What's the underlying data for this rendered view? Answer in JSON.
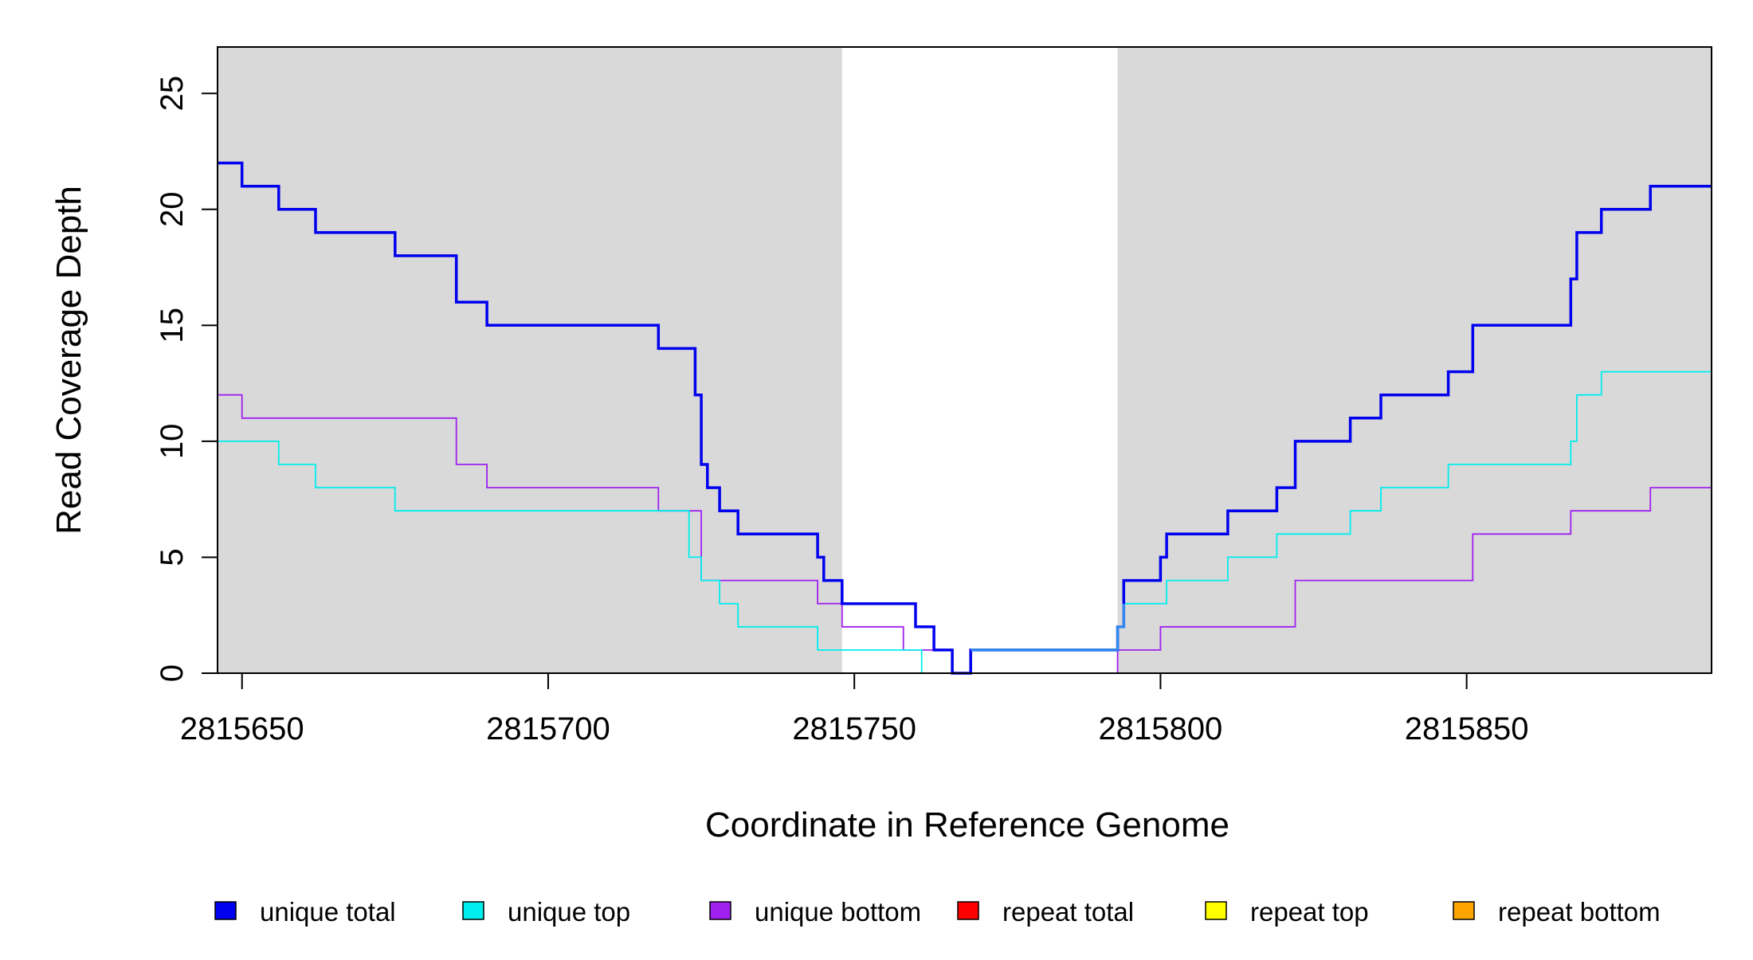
{
  "chart_data": {
    "type": "line",
    "step": true,
    "title": "",
    "xlabel": "Coordinate in Reference Genome",
    "ylabel": "Read Coverage Depth",
    "xlim": [
      2815646,
      2815890
    ],
    "ylim": [
      0,
      27
    ],
    "x_ticks": [
      2815650,
      2815700,
      2815750,
      2815800,
      2815850
    ],
    "y_ticks": [
      0,
      5,
      10,
      15,
      20,
      25
    ],
    "shaded_regions": [
      {
        "x0": 2815646,
        "x1": 2815748,
        "color": "#d9d9d9"
      },
      {
        "x0": 2815793,
        "x1": 2815890,
        "color": "#d9d9d9"
      }
    ],
    "legend_position": "bottom",
    "series": [
      {
        "name": "unique total",
        "color": "#0000ee",
        "line": "thick",
        "points": [
          [
            2815646,
            22
          ],
          [
            2815650,
            22
          ],
          [
            2815650,
            21
          ],
          [
            2815656,
            21
          ],
          [
            2815656,
            20
          ],
          [
            2815662,
            20
          ],
          [
            2815662,
            19
          ],
          [
            2815675,
            19
          ],
          [
            2815675,
            18
          ],
          [
            2815685,
            18
          ],
          [
            2815685,
            16
          ],
          [
            2815690,
            16
          ],
          [
            2815690,
            15
          ],
          [
            2815718,
            15
          ],
          [
            2815718,
            14
          ],
          [
            2815724,
            14
          ],
          [
            2815724,
            12
          ],
          [
            2815725,
            12
          ],
          [
            2815725,
            9
          ],
          [
            2815726,
            9
          ],
          [
            2815726,
            8
          ],
          [
            2815728,
            8
          ],
          [
            2815728,
            7
          ],
          [
            2815731,
            7
          ],
          [
            2815731,
            6
          ],
          [
            2815744,
            6
          ],
          [
            2815744,
            5
          ],
          [
            2815745,
            5
          ],
          [
            2815745,
            4
          ],
          [
            2815748,
            4
          ],
          [
            2815748,
            3
          ],
          [
            2815760,
            3
          ],
          [
            2815760,
            2
          ],
          [
            2815763,
            2
          ],
          [
            2815763,
            1
          ],
          [
            2815766,
            1
          ],
          [
            2815766,
            0
          ],
          [
            2815769,
            0
          ],
          [
            2815769,
            1
          ],
          [
            2815793,
            1
          ],
          [
            2815793,
            2
          ],
          [
            2815794,
            2
          ],
          [
            2815794,
            4
          ],
          [
            2815800,
            4
          ],
          [
            2815800,
            5
          ],
          [
            2815801,
            5
          ],
          [
            2815801,
            6
          ],
          [
            2815811,
            6
          ],
          [
            2815811,
            7
          ],
          [
            2815819,
            7
          ],
          [
            2815819,
            8
          ],
          [
            2815822,
            8
          ],
          [
            2815822,
            10
          ],
          [
            2815831,
            10
          ],
          [
            2815831,
            11
          ],
          [
            2815836,
            11
          ],
          [
            2815836,
            12
          ],
          [
            2815847,
            12
          ],
          [
            2815847,
            13
          ],
          [
            2815851,
            13
          ],
          [
            2815851,
            15
          ],
          [
            2815867,
            15
          ],
          [
            2815867,
            17
          ],
          [
            2815868,
            17
          ],
          [
            2815868,
            19
          ],
          [
            2815872,
            19
          ],
          [
            2815872,
            20
          ],
          [
            2815880,
            20
          ],
          [
            2815880,
            21
          ],
          [
            2815890,
            21
          ]
        ]
      },
      {
        "name": "unique top",
        "color": "#00eeee",
        "line": "thin",
        "points": [
          [
            2815646,
            10
          ],
          [
            2815656,
            10
          ],
          [
            2815656,
            9
          ],
          [
            2815662,
            9
          ],
          [
            2815662,
            8
          ],
          [
            2815675,
            8
          ],
          [
            2815675,
            7
          ],
          [
            2815723,
            7
          ],
          [
            2815723,
            5
          ],
          [
            2815725,
            5
          ],
          [
            2815725,
            4
          ],
          [
            2815728,
            4
          ],
          [
            2815728,
            3
          ],
          [
            2815731,
            3
          ],
          [
            2815731,
            2
          ],
          [
            2815744,
            2
          ],
          [
            2815744,
            1
          ],
          [
            2815761,
            1
          ],
          [
            2815761,
            0
          ],
          [
            2815769,
            0
          ],
          [
            2815769,
            1
          ],
          [
            2815793,
            1
          ],
          [
            2815793,
            2
          ],
          [
            2815794,
            2
          ],
          [
            2815794,
            3
          ],
          [
            2815801,
            3
          ],
          [
            2815801,
            4
          ],
          [
            2815811,
            4
          ],
          [
            2815811,
            5
          ],
          [
            2815819,
            5
          ],
          [
            2815819,
            6
          ],
          [
            2815831,
            6
          ],
          [
            2815831,
            7
          ],
          [
            2815836,
            7
          ],
          [
            2815836,
            8
          ],
          [
            2815847,
            8
          ],
          [
            2815847,
            9
          ],
          [
            2815867,
            9
          ],
          [
            2815867,
            10
          ],
          [
            2815868,
            10
          ],
          [
            2815868,
            12
          ],
          [
            2815872,
            12
          ],
          [
            2815872,
            13
          ],
          [
            2815890,
            13
          ]
        ]
      },
      {
        "name": "unique bottom",
        "color": "#a020f0",
        "line": "thin",
        "points": [
          [
            2815646,
            12
          ],
          [
            2815650,
            12
          ],
          [
            2815650,
            11
          ],
          [
            2815685,
            11
          ],
          [
            2815685,
            9
          ],
          [
            2815690,
            9
          ],
          [
            2815690,
            8
          ],
          [
            2815718,
            8
          ],
          [
            2815718,
            7
          ],
          [
            2815725,
            7
          ],
          [
            2815725,
            4
          ],
          [
            2815744,
            4
          ],
          [
            2815744,
            3
          ],
          [
            2815748,
            3
          ],
          [
            2815748,
            2
          ],
          [
            2815758,
            2
          ],
          [
            2815758,
            1
          ],
          [
            2815766,
            1
          ],
          [
            2815766,
            0
          ],
          [
            2815793,
            0
          ],
          [
            2815793,
            1
          ],
          [
            2815800,
            1
          ],
          [
            2815800,
            2
          ],
          [
            2815822,
            2
          ],
          [
            2815822,
            4
          ],
          [
            2815851,
            4
          ],
          [
            2815851,
            6
          ],
          [
            2815867,
            6
          ],
          [
            2815867,
            7
          ],
          [
            2815880,
            7
          ],
          [
            2815880,
            8
          ],
          [
            2815890,
            8
          ]
        ]
      },
      {
        "name": "repeat total",
        "color": "#ff0000",
        "line": "thin",
        "points": [
          [
            2815646,
            0
          ],
          [
            2815890,
            0
          ]
        ]
      },
      {
        "name": "repeat top",
        "color": "#ffff00",
        "line": "thin",
        "points": [
          [
            2815646,
            0
          ],
          [
            2815890,
            0
          ]
        ]
      },
      {
        "name": "repeat bottom",
        "color": "#ffa500",
        "line": "thin",
        "points": [
          [
            2815646,
            0
          ],
          [
            2815890,
            0
          ]
        ]
      }
    ],
    "overlay": {
      "color": "#3388ee",
      "points": [
        [
          2815769,
          1
        ],
        [
          2815793,
          1
        ],
        [
          2815793,
          2
        ],
        [
          2815794,
          2
        ],
        [
          2815794,
          3
        ]
      ]
    }
  }
}
